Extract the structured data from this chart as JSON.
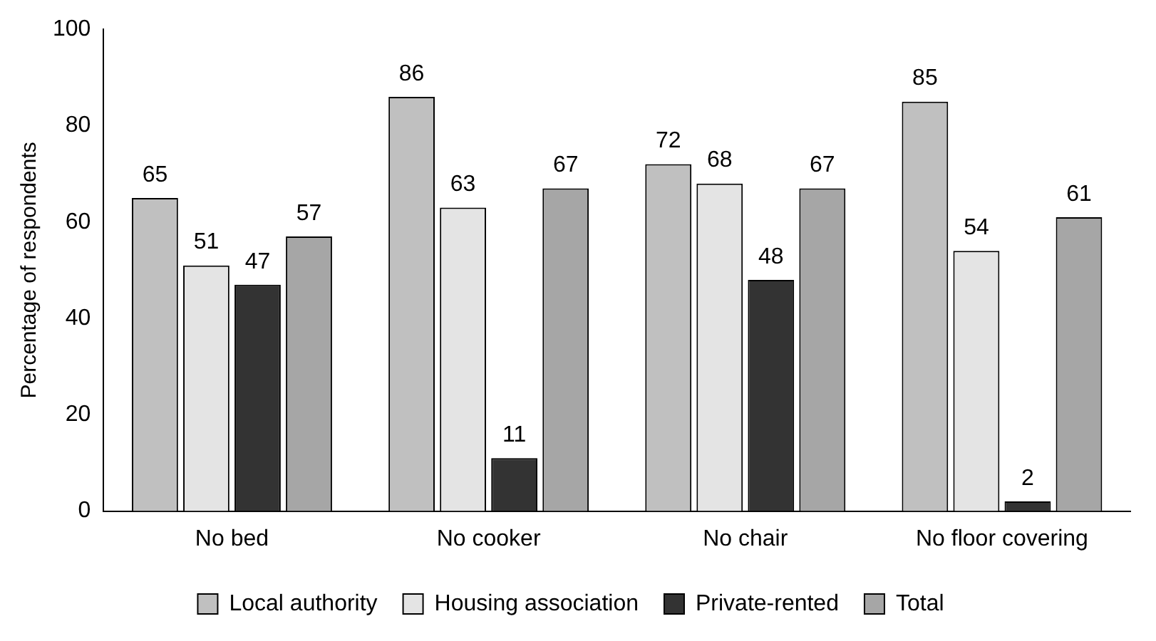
{
  "chart_data": {
    "type": "bar",
    "ylabel": "Percentage of respondents",
    "categories": [
      "No bed",
      "No cooker",
      "No chair",
      "No floor covering"
    ],
    "series": [
      {
        "name": "Local authority",
        "color": "#c0c0c0",
        "values": [
          65,
          86,
          72,
          85
        ]
      },
      {
        "name": "Housing association",
        "color": "#e4e4e4",
        "values": [
          51,
          63,
          68,
          54
        ]
      },
      {
        "name": "Private-rented",
        "color": "#333333",
        "values": [
          47,
          11,
          48,
          2
        ]
      },
      {
        "name": "Total",
        "color": "#a6a6a6",
        "values": [
          57,
          67,
          67,
          61
        ]
      }
    ],
    "ylim": [
      0,
      100
    ],
    "yticks": [
      0,
      20,
      40,
      60,
      80,
      100
    ],
    "grid": false,
    "legend": "bottom",
    "data_labels": true
  }
}
